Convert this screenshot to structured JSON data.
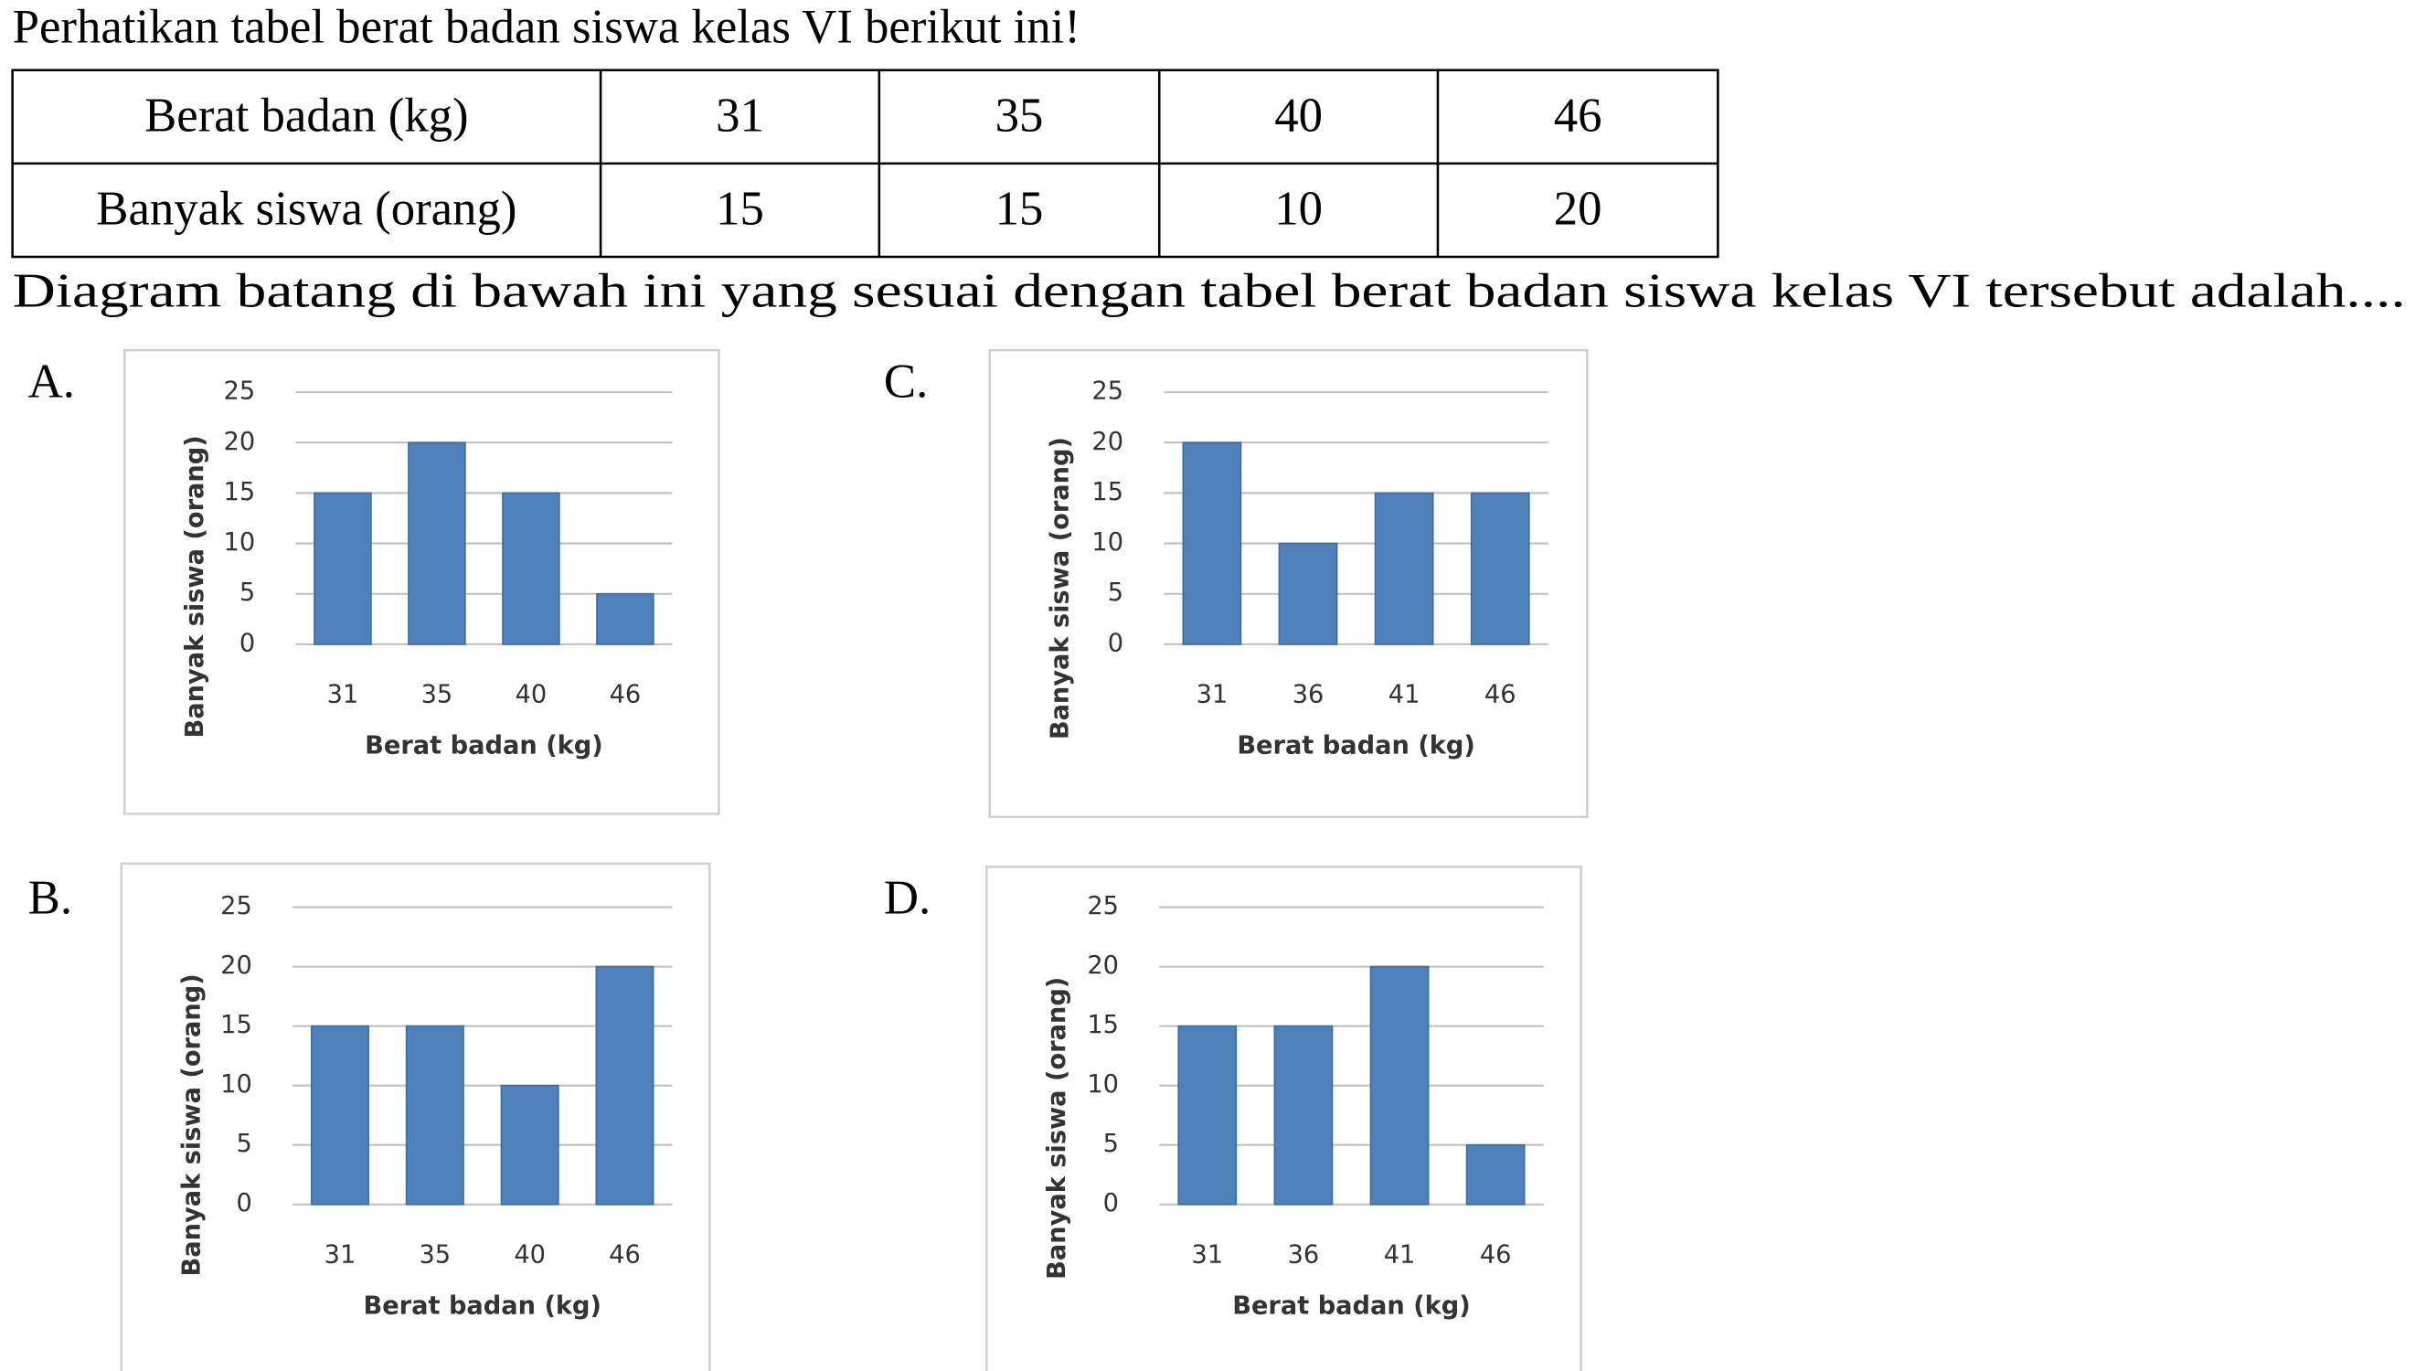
{
  "question": "Perhatikan tabel berat badan siswa kelas VI berikut ini!",
  "table": {
    "rows": [
      [
        "Berat badan (kg)",
        "31",
        "35",
        "40",
        "46"
      ],
      [
        "Banyak siswa (orang)",
        "15",
        "15",
        "10",
        "20"
      ]
    ]
  },
  "prompt": "Diagram batang di bawah ini yang sesuai dengan tabel berat badan siswa kelas VI tersebut adalah....",
  "chart_data": [
    {
      "type": "bar",
      "label": "A.",
      "x_label": "Berat badan (kg)",
      "y_label": "Banyak siswa (orang)",
      "categories": [
        "31",
        "35",
        "40",
        "46"
      ],
      "values": [
        15,
        20,
        15,
        5
      ],
      "color": "#4f81bd",
      "ylim": [
        0,
        25
      ],
      "yticks": [
        0,
        5,
        10,
        15,
        20,
        25
      ],
      "grid": true
    },
    {
      "type": "bar",
      "label": "B.",
      "x_label": "Berat badan (kg)",
      "y_label": "Banyak siswa (orang)",
      "categories": [
        "31",
        "35",
        "40",
        "46"
      ],
      "values": [
        15,
        15,
        10,
        20
      ],
      "color": "#4f81bd",
      "ylim": [
        0,
        25
      ],
      "yticks": [
        0,
        5,
        10,
        15,
        20,
        25
      ],
      "grid": true
    },
    {
      "type": "bar",
      "label": "C.",
      "x_label": "Berat badan (kg)",
      "y_label": "Banyak siswa (orang)",
      "categories": [
        "31",
        "36",
        "41",
        "46"
      ],
      "values": [
        20,
        10,
        15,
        15
      ],
      "color": "#4f81bd",
      "ylim": [
        0,
        25
      ],
      "yticks": [
        0,
        5,
        10,
        15,
        20,
        25
      ],
      "grid": true
    },
    {
      "type": "bar",
      "label": "D.",
      "x_label": "Berat badan (kg)",
      "y_label": "Banyak siswa (orang)",
      "categories": [
        "31",
        "36",
        "41",
        "46"
      ],
      "values": [
        15,
        15,
        20,
        5
      ],
      "color": "#4f81bd",
      "ylim": [
        0,
        25
      ],
      "yticks": [
        0,
        5,
        10,
        15,
        20,
        25
      ],
      "grid": true
    }
  ]
}
